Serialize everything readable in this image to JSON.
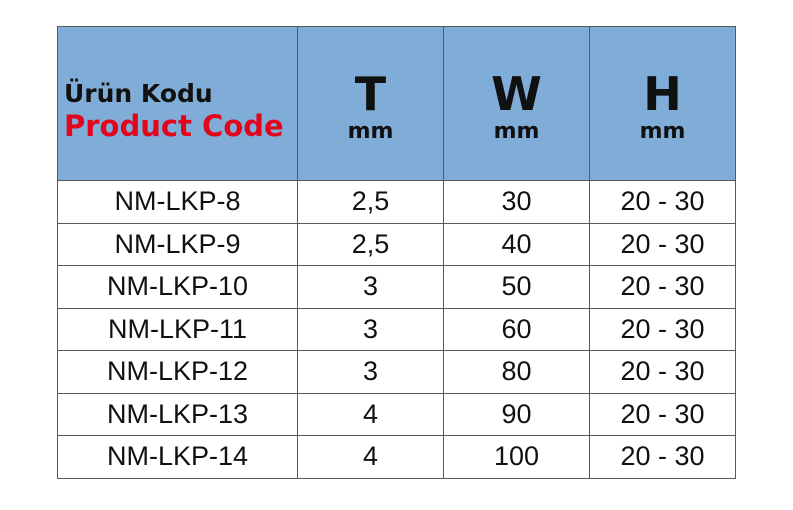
{
  "header": {
    "code_tr": "Ürün Kodu",
    "code_en": "Product Code",
    "columns": [
      {
        "symbol": "T",
        "unit": "mm"
      },
      {
        "symbol": "W",
        "unit": "mm"
      },
      {
        "symbol": "H",
        "unit": "mm"
      }
    ]
  },
  "colors": {
    "header_bg": "#80acd8",
    "product_code_red": "#e3051b"
  },
  "rows": [
    [
      "NM-LKP-8",
      "2,5",
      "30",
      "20 - 30"
    ],
    [
      "NM-LKP-9",
      "2,5",
      "40",
      "20 - 30"
    ],
    [
      "NM-LKP-10",
      "3",
      "50",
      "20 - 30"
    ],
    [
      "NM-LKP-11",
      "3",
      "60",
      "20 - 30"
    ],
    [
      "NM-LKP-12",
      "3",
      "80",
      "20 - 30"
    ],
    [
      "NM-LKP-13",
      "4",
      "90",
      "20 - 30"
    ],
    [
      "NM-LKP-14",
      "4",
      "100",
      "20 - 30"
    ]
  ]
}
